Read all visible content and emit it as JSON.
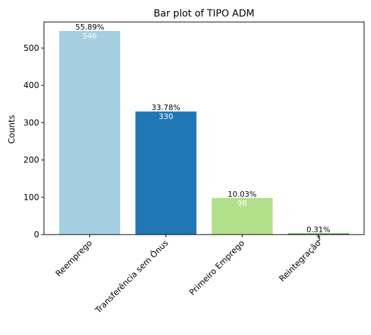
{
  "chart_data": {
    "type": "bar",
    "title": "Bar plot of TIPO ADM",
    "xlabel": "",
    "ylabel": "Counts",
    "ylim": [
      0,
      570
    ],
    "yticks": [
      0,
      100,
      200,
      300,
      400,
      500
    ],
    "categories": [
      "Reemprego",
      "Transferência sem Ônus",
      "Primeiro Emprego",
      "Reintegração"
    ],
    "values": [
      546,
      330,
      98,
      3
    ],
    "percent_labels": [
      "55.89%",
      "33.78%",
      "10.03%",
      "0.31%"
    ],
    "count_labels": [
      "546",
      "330",
      "98",
      "3"
    ],
    "colors": [
      "#a6cee3",
      "#1f78b4",
      "#b2df8a",
      "#33a02c"
    ],
    "grid": false,
    "legend": "none"
  }
}
